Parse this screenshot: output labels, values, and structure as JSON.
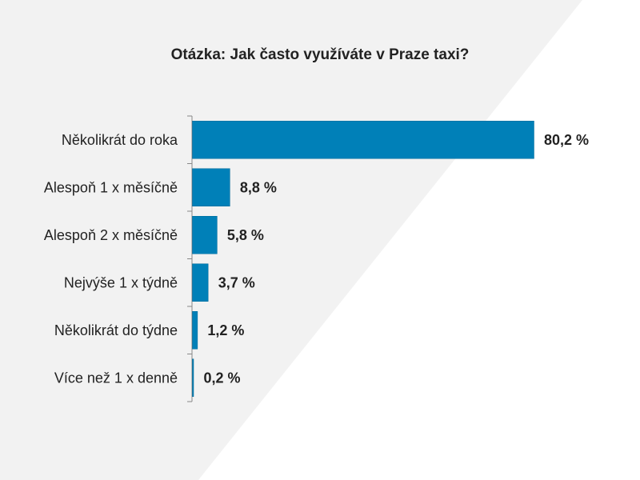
{
  "chart_data": {
    "type": "bar",
    "orientation": "horizontal",
    "title": "Otázka: Jak často využíváte v Praze taxi?",
    "categories": [
      "Několikrát do roka",
      "Alespoň 1 x měsíčně",
      "Alespoň 2 x měsíčně",
      "Nejvýše 1 x týdně",
      "Několikrát do týdne",
      "Více než 1 x denně"
    ],
    "values": [
      80.2,
      8.8,
      5.8,
      3.7,
      1.2,
      0.2
    ],
    "value_labels": [
      "80,2 %",
      "8,8 %",
      "5,8 %",
      "3,7 %",
      "1,2 %",
      "0,2 %"
    ],
    "unit": "%",
    "xlim": [
      0,
      80.2
    ],
    "bar_color": "#0080b8",
    "background_shape_color": "#f2f2f2",
    "grid": false,
    "legend": "none"
  }
}
